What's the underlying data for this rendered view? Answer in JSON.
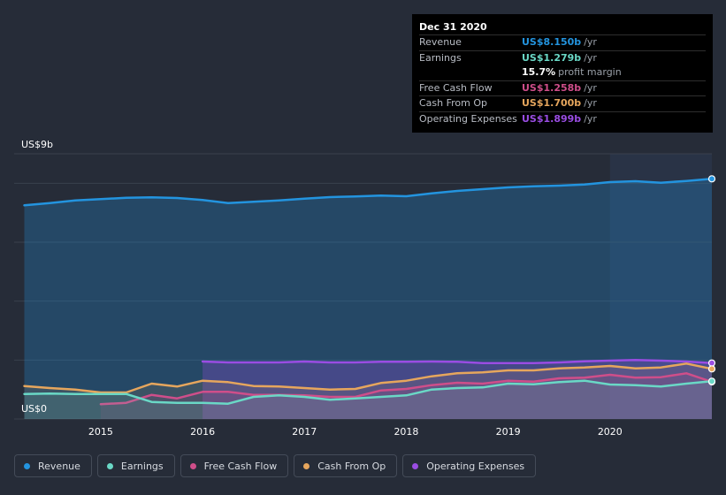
{
  "tooltip": {
    "date": "Dec 31 2020",
    "rows": [
      {
        "label": "Revenue",
        "value": "US$8.150b",
        "unit": "/yr",
        "color": "#2394df"
      },
      {
        "label": "Earnings",
        "value": "US$1.279b",
        "unit": "/yr",
        "color": "#6ad8c6"
      },
      {
        "label": "",
        "value": "15.7%",
        "unit": "profit margin",
        "color": "#ffffff"
      },
      {
        "label": "Free Cash Flow",
        "value": "US$1.258b",
        "unit": "/yr",
        "color": "#cf4e8a"
      },
      {
        "label": "Cash From Op",
        "value": "US$1.700b",
        "unit": "/yr",
        "color": "#e6a65d"
      },
      {
        "label": "Operating Expenses",
        "value": "US$1.899b",
        "unit": "/yr",
        "color": "#9a4de3"
      }
    ]
  },
  "legend": [
    {
      "label": "Revenue",
      "color": "#2394df"
    },
    {
      "label": "Earnings",
      "color": "#6ad8c6"
    },
    {
      "label": "Free Cash Flow",
      "color": "#cf4e8a"
    },
    {
      "label": "Cash From Op",
      "color": "#e6a65d"
    },
    {
      "label": "Operating Expenses",
      "color": "#9a4de3"
    }
  ],
  "chart_data": {
    "type": "area",
    "y_top_label": "US$9b",
    "y_bottom_label": "US$0",
    "ylim": [
      0,
      9
    ],
    "xlim": [
      2014.15,
      2021.0
    ],
    "x_ticks": [
      2015,
      2016,
      2017,
      2018,
      2019,
      2020
    ],
    "x_tick_labels": [
      "2015",
      "2016",
      "2017",
      "2018",
      "2019",
      "2020"
    ],
    "highlight_from": 2020.0,
    "series": [
      {
        "name": "Revenue",
        "color": "#2394df",
        "x": [
          2014.25,
          2014.5,
          2014.75,
          2015.0,
          2015.25,
          2015.5,
          2015.75,
          2016.0,
          2016.25,
          2016.5,
          2016.75,
          2017.0,
          2017.25,
          2017.5,
          2017.75,
          2018.0,
          2018.25,
          2018.5,
          2018.75,
          2019.0,
          2019.25,
          2019.5,
          2019.75,
          2020.0,
          2020.25,
          2020.5,
          2020.75,
          2021.0
        ],
        "values": [
          7.25,
          7.33,
          7.42,
          7.46,
          7.51,
          7.52,
          7.5,
          7.43,
          7.33,
          7.37,
          7.42,
          7.48,
          7.53,
          7.55,
          7.58,
          7.56,
          7.66,
          7.74,
          7.8,
          7.86,
          7.9,
          7.92,
          7.96,
          8.04,
          8.07,
          8.02,
          8.08,
          8.15
        ]
      },
      {
        "name": "Earnings",
        "color": "#6ad8c6",
        "x": [
          2014.25,
          2014.5,
          2014.75,
          2015.0,
          2015.25,
          2015.5,
          2015.75,
          2016.0,
          2016.25,
          2016.5,
          2016.75,
          2017.0,
          2017.25,
          2017.5,
          2017.75,
          2018.0,
          2018.25,
          2018.5,
          2018.75,
          2019.0,
          2019.25,
          2019.5,
          2019.75,
          2020.0,
          2020.25,
          2020.5,
          2020.75,
          2021.0
        ],
        "values": [
          0.85,
          0.86,
          0.85,
          0.85,
          0.85,
          0.58,
          0.55,
          0.55,
          0.52,
          0.75,
          0.8,
          0.75,
          0.65,
          0.7,
          0.75,
          0.8,
          1.0,
          1.05,
          1.07,
          1.2,
          1.18,
          1.25,
          1.3,
          1.17,
          1.15,
          1.1,
          1.2,
          1.28
        ]
      },
      {
        "name": "Free Cash Flow",
        "color": "#cf4e8a",
        "x": [
          2014.25,
          2014.5,
          2014.75,
          2015.0,
          2015.25,
          2015.5,
          2015.75,
          2016.0,
          2016.25,
          2016.5,
          2016.75,
          2017.0,
          2017.25,
          2017.5,
          2017.75,
          2018.0,
          2018.25,
          2018.5,
          2018.75,
          2019.0,
          2019.25,
          2019.5,
          2019.75,
          2020.0,
          2020.25,
          2020.5,
          2020.75,
          2021.0
        ],
        "values": [
          null,
          null,
          null,
          0.5,
          0.55,
          0.82,
          0.7,
          0.92,
          0.92,
          0.82,
          0.82,
          0.8,
          0.75,
          0.75,
          0.97,
          1.02,
          1.15,
          1.23,
          1.2,
          1.3,
          1.27,
          1.38,
          1.4,
          1.5,
          1.4,
          1.42,
          1.55,
          1.26
        ]
      },
      {
        "name": "Cash From Op",
        "color": "#e6a65d",
        "x": [
          2014.25,
          2014.5,
          2014.75,
          2015.0,
          2015.25,
          2015.5,
          2015.75,
          2016.0,
          2016.25,
          2016.5,
          2016.75,
          2017.0,
          2017.25,
          2017.5,
          2017.75,
          2018.0,
          2018.25,
          2018.5,
          2018.75,
          2019.0,
          2019.25,
          2019.5,
          2019.75,
          2020.0,
          2020.25,
          2020.5,
          2020.75,
          2021.0
        ],
        "values": [
          1.12,
          1.05,
          1.0,
          0.9,
          0.9,
          1.2,
          1.1,
          1.3,
          1.25,
          1.12,
          1.1,
          1.05,
          1.0,
          1.02,
          1.22,
          1.3,
          1.45,
          1.55,
          1.58,
          1.65,
          1.65,
          1.72,
          1.75,
          1.8,
          1.72,
          1.75,
          1.88,
          1.7
        ]
      },
      {
        "name": "Operating Expenses",
        "color": "#9a4de3",
        "x": [
          2016.0,
          2016.25,
          2016.5,
          2016.75,
          2017.0,
          2017.25,
          2017.5,
          2017.75,
          2018.0,
          2018.25,
          2018.5,
          2018.75,
          2019.0,
          2019.25,
          2019.5,
          2019.75,
          2020.0,
          2020.25,
          2020.5,
          2020.75,
          2021.0
        ],
        "values": [
          1.95,
          1.92,
          1.92,
          1.92,
          1.95,
          1.92,
          1.92,
          1.94,
          1.94,
          1.95,
          1.94,
          1.9,
          1.9,
          1.9,
          1.92,
          1.96,
          1.98,
          2.0,
          1.98,
          1.95,
          1.9
        ]
      }
    ]
  }
}
